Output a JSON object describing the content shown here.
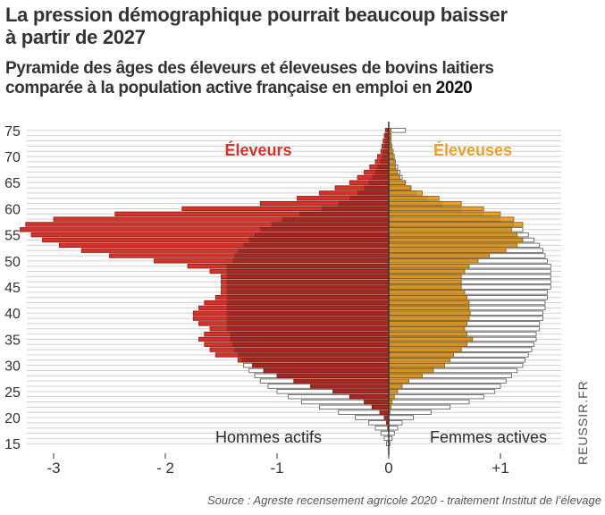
{
  "header": {
    "title_line1": "La pression démographique pourrait beaucoup baisser",
    "title_line2": "à partir de 2027",
    "subtitle_line1": "Pyramide des âges des éleveurs et éleveuses de bovins laitiers",
    "subtitle_line2": "comparée à la population active française en emploi en ",
    "subtitle_year": "2020"
  },
  "watermark": "REUSSIR.FR",
  "source": "Source : Agreste recensement agricole 2020 - traitement Institut de l’élevage",
  "colors": {
    "eleveurs": "#d7322a",
    "eleveurs_outline": "#8a1f17",
    "eleveuses": "#e8a22a",
    "eleveuses_outline": "#8a5a10",
    "actifs_fill": "#ffffff",
    "actifs_outline": "#555555",
    "grid": "#d0d0d0",
    "zero_line": "#333333"
  },
  "chart_data": {
    "type": "bar",
    "orientation": "horizontal-pyramid",
    "grid": true,
    "ylabel": "",
    "xlabel": "",
    "xlim": [
      -3.3,
      1.5
    ],
    "ylim": [
      13.5,
      76
    ],
    "y_ticks": [
      15,
      20,
      25,
      30,
      35,
      40,
      45,
      50,
      55,
      60,
      65,
      70,
      75
    ],
    "x_ticks": [
      {
        "value": -3,
        "label": "-3"
      },
      {
        "value": -2,
        "label": "- 2"
      },
      {
        "value": -1,
        "label": "-1"
      },
      {
        "value": 0,
        "label": "0"
      },
      {
        "value": 1,
        "label": "+1"
      }
    ],
    "annotations": {
      "eleveurs": "Éleveurs",
      "eleveuses": "Éleveuses",
      "hommes_actifs": "Hommes actifs",
      "femmes_actives": "Femmes actives"
    },
    "ages": [
      15,
      16,
      17,
      18,
      19,
      20,
      21,
      22,
      23,
      24,
      25,
      26,
      27,
      28,
      29,
      30,
      31,
      32,
      33,
      34,
      35,
      36,
      37,
      38,
      39,
      40,
      41,
      42,
      43,
      44,
      45,
      46,
      47,
      48,
      49,
      50,
      51,
      52,
      53,
      54,
      55,
      56,
      57,
      58,
      59,
      60,
      61,
      62,
      63,
      64,
      65,
      66,
      67,
      68,
      69,
      70,
      71,
      72,
      73,
      74,
      75
    ],
    "series": [
      {
        "name": "Éleveurs",
        "side": "left",
        "values": [
          0,
          0,
          0,
          0.01,
          0.02,
          0.04,
          0.08,
          0.15,
          0.22,
          0.35,
          0.5,
          0.7,
          0.85,
          1.0,
          1.12,
          1.22,
          1.35,
          1.55,
          1.6,
          1.65,
          1.7,
          1.65,
          1.6,
          1.7,
          1.75,
          1.75,
          1.7,
          1.65,
          1.55,
          1.5,
          1.5,
          1.5,
          1.5,
          1.6,
          1.8,
          2.1,
          2.5,
          2.75,
          2.95,
          3.1,
          3.2,
          3.3,
          3.25,
          3.0,
          2.45,
          1.85,
          1.15,
          0.82,
          0.62,
          0.48,
          0.35,
          0.28,
          0.22,
          0.17,
          0.12,
          0.1,
          0.07,
          0.06,
          0.05,
          0.04,
          0.03
        ]
      },
      {
        "name": "Éleveuses",
        "side": "right",
        "values": [
          0,
          0,
          0,
          0,
          0,
          0,
          0.01,
          0.02,
          0.03,
          0.05,
          0.08,
          0.12,
          0.18,
          0.3,
          0.4,
          0.5,
          0.55,
          0.58,
          0.65,
          0.7,
          0.75,
          0.7,
          0.68,
          0.7,
          0.72,
          0.73,
          0.72,
          0.72,
          0.7,
          0.68,
          0.65,
          0.65,
          0.65,
          0.68,
          0.72,
          0.8,
          0.9,
          1.05,
          1.15,
          1.2,
          1.15,
          1.1,
          1.2,
          1.12,
          1.0,
          0.85,
          0.65,
          0.45,
          0.3,
          0.2,
          0.15,
          0.1,
          0.08,
          0.06,
          0.05,
          0.04,
          0.03,
          0.02,
          0.02,
          0.02,
          0.02
        ]
      },
      {
        "name": "Hommes actifs",
        "side": "left",
        "values": [
          0.02,
          0.04,
          0.07,
          0.12,
          0.18,
          0.3,
          0.45,
          0.62,
          0.78,
          0.9,
          1.0,
          1.08,
          1.15,
          1.2,
          1.25,
          1.3,
          1.32,
          1.35,
          1.38,
          1.4,
          1.42,
          1.42,
          1.45,
          1.45,
          1.45,
          1.45,
          1.45,
          1.45,
          1.45,
          1.45,
          1.45,
          1.45,
          1.45,
          1.45,
          1.45,
          1.4,
          1.38,
          1.35,
          1.3,
          1.25,
          1.2,
          1.15,
          1.05,
          0.95,
          0.8,
          0.6,
          0.45,
          0.35,
          0.28,
          0.22,
          0.18,
          0.15,
          0.12,
          0.1,
          0.08,
          0.06,
          0.05,
          0.04,
          0.03,
          0.03,
          0.02
        ]
      },
      {
        "name": "Femmes actives",
        "side": "right",
        "values": [
          0.01,
          0.03,
          0.05,
          0.08,
          0.12,
          0.22,
          0.38,
          0.55,
          0.72,
          0.85,
          0.95,
          1.0,
          1.05,
          1.1,
          1.15,
          1.2,
          1.22,
          1.25,
          1.28,
          1.3,
          1.32,
          1.32,
          1.35,
          1.35,
          1.38,
          1.38,
          1.4,
          1.4,
          1.42,
          1.42,
          1.45,
          1.45,
          1.45,
          1.45,
          1.45,
          1.42,
          1.4,
          1.38,
          1.35,
          1.3,
          1.25,
          1.2,
          1.12,
          1.0,
          0.85,
          0.65,
          0.48,
          0.35,
          0.25,
          0.2,
          0.15,
          0.12,
          0.1,
          0.08,
          0.06,
          0.05,
          0.04,
          0.03,
          0.02,
          0.02,
          0.15
        ]
      }
    ]
  }
}
